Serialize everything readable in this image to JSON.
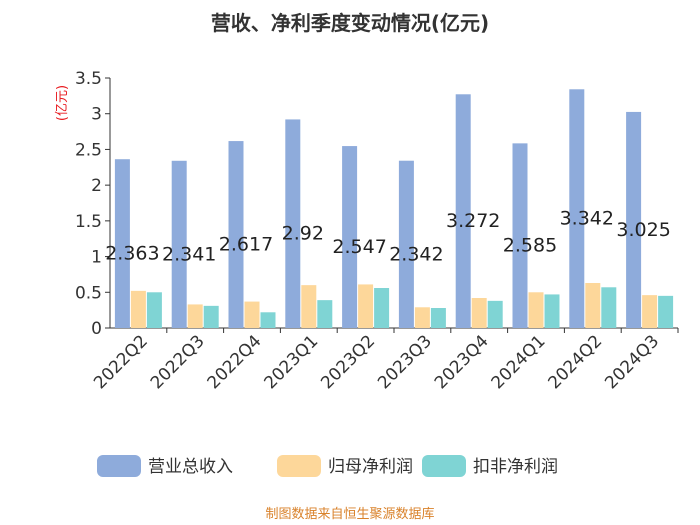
{
  "chart_data": {
    "type": "bar",
    "title": "营收、净利季度变动情况(亿元)",
    "unit_label": "(亿元)",
    "categories": [
      "2022Q2",
      "2022Q3",
      "2022Q4",
      "2023Q1",
      "2023Q2",
      "2023Q3",
      "2023Q4",
      "2024Q1",
      "2024Q2",
      "2024Q3"
    ],
    "series": [
      {
        "name": "营业总收入",
        "color": "#8eabdb",
        "values": [
          2.363,
          2.341,
          2.617,
          2.92,
          2.547,
          2.342,
          3.272,
          2.585,
          3.342,
          3.025
        ]
      },
      {
        "name": "归母净利润",
        "color": "#fdd79a",
        "values": [
          0.52,
          0.33,
          0.37,
          0.6,
          0.61,
          0.29,
          0.42,
          0.5,
          0.63,
          0.46
        ]
      },
      {
        "name": "扣非净利润",
        "color": "#7fd4d4",
        "values": [
          0.5,
          0.31,
          0.22,
          0.39,
          0.56,
          0.28,
          0.38,
          0.47,
          0.57,
          0.45
        ]
      }
    ],
    "data_labels": [
      "2.363",
      "2.341",
      "2.617",
      "2.92",
      "2.547",
      "2.342",
      "3.272",
      "2.585",
      "3.342",
      "3.025"
    ],
    "y_ticks": [
      "0",
      "0.5",
      "1",
      "1.5",
      "2",
      "2.5",
      "3",
      "3.5"
    ],
    "ylim": [
      0,
      3.5
    ],
    "grid": false,
    "legend_position": "bottom"
  },
  "source": "制图数据来自恒生聚源数据库"
}
